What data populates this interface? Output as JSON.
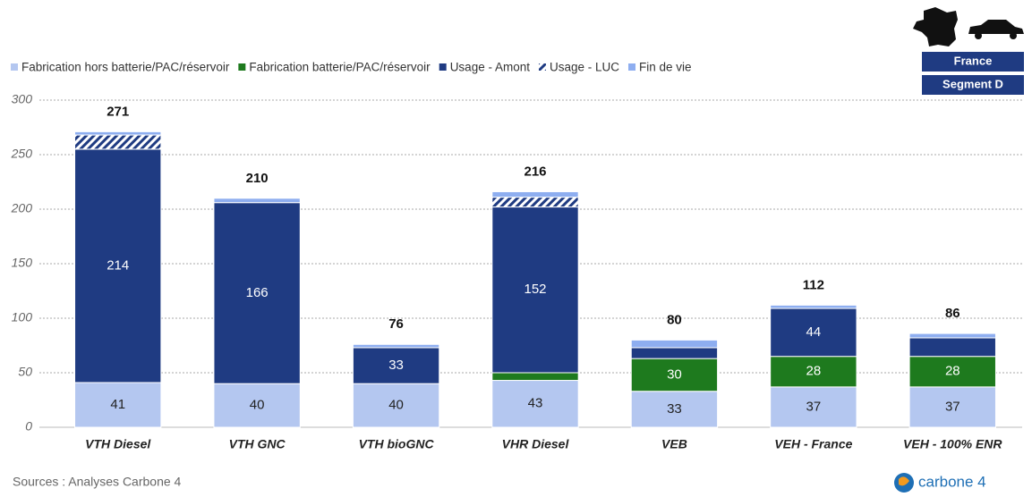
{
  "chart_data": {
    "type": "stacked_bar",
    "categories": [
      "VTH Diesel",
      "VTH GNC",
      "VTH bioGNC",
      "VHR Diesel",
      "VEB",
      "VEH - France",
      "VEH - 100% ENR"
    ],
    "series": [
      {
        "name": "Fabrication hors batterie/PAC/réservoir",
        "color": "#b4c7f0",
        "values": [
          41,
          40,
          40,
          43,
          33,
          37,
          37
        ]
      },
      {
        "name": "Fabrication batterie/PAC/réservoir",
        "color": "#1e7a1e",
        "values": [
          0,
          0,
          0,
          7,
          30,
          28,
          28
        ]
      },
      {
        "name": "Usage - Amont",
        "color": "#1f3b82",
        "values": [
          214,
          166,
          33,
          152,
          10,
          44,
          17
        ]
      },
      {
        "name": "Usage - LUC",
        "color": "#1f3b82",
        "pattern": "hatch",
        "values": [
          13,
          0,
          0,
          9,
          0,
          0,
          0
        ]
      },
      {
        "name": "Fin de vie",
        "color": "#8eaef0",
        "values": [
          3,
          4,
          3,
          5,
          7,
          3,
          4
        ]
      }
    ],
    "totals": [
      271,
      210,
      76,
      216,
      80,
      112,
      86
    ],
    "ylim": [
      0,
      300
    ],
    "yticks": [
      0,
      50,
      100,
      150,
      200,
      250,
      300
    ],
    "grid": true,
    "legend": "top-left",
    "badges": [
      "France",
      "Segment D"
    ],
    "source": "Sources : Analyses Carbone 4",
    "logo": "carbone 4"
  }
}
